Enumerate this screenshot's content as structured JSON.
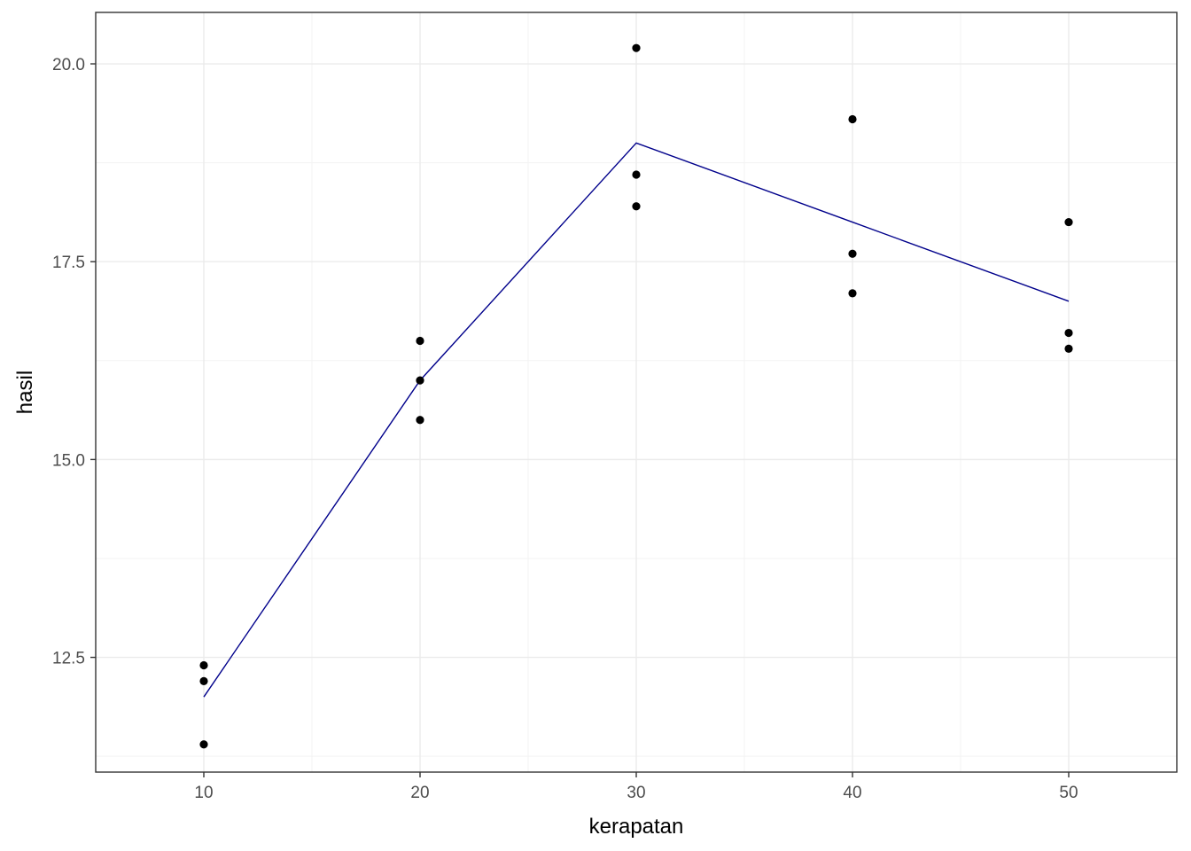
{
  "chart_data": {
    "type": "scatter",
    "xlabel": "kerapatan",
    "ylabel": "hasil",
    "xlim": [
      5,
      55
    ],
    "ylim": [
      11.05,
      20.65
    ],
    "x_ticks": [
      10,
      20,
      30,
      40,
      50
    ],
    "x_tick_labels": [
      "10",
      "20",
      "30",
      "40",
      "50"
    ],
    "y_ticks": [
      12.5,
      15.0,
      17.5,
      20.0
    ],
    "y_tick_labels": [
      "12.5",
      "15.0",
      "17.5",
      "20.0"
    ],
    "y_minor_ticks": [
      11.25,
      13.75,
      16.25,
      18.75
    ],
    "grid": true,
    "series": [
      {
        "type": "scatter",
        "color": "#000000",
        "points": [
          {
            "x": 10,
            "y": 12.4
          },
          {
            "x": 10,
            "y": 12.2
          },
          {
            "x": 10,
            "y": 11.4
          },
          {
            "x": 20,
            "y": 16.5
          },
          {
            "x": 20,
            "y": 16.0
          },
          {
            "x": 20,
            "y": 15.5
          },
          {
            "x": 30,
            "y": 20.2
          },
          {
            "x": 30,
            "y": 18.6
          },
          {
            "x": 30,
            "y": 18.2
          },
          {
            "x": 40,
            "y": 19.3
          },
          {
            "x": 40,
            "y": 17.6
          },
          {
            "x": 40,
            "y": 17.1
          },
          {
            "x": 50,
            "y": 18.0
          },
          {
            "x": 50,
            "y": 16.6
          },
          {
            "x": 50,
            "y": 16.4
          }
        ]
      },
      {
        "type": "line",
        "color": "#00008b",
        "points": [
          {
            "x": 10,
            "y": 12.0
          },
          {
            "x": 20,
            "y": 16.0
          },
          {
            "x": 30,
            "y": 19.0
          },
          {
            "x": 40,
            "y": 18.0
          },
          {
            "x": 50,
            "y": 17.0
          }
        ]
      }
    ]
  }
}
